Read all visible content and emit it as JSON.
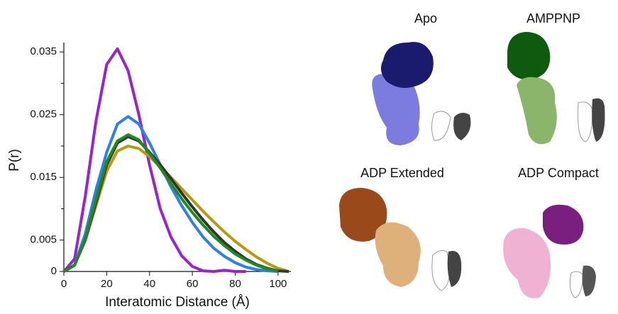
{
  "chart_data": {
    "type": "line",
    "xlabel": "Interatomic Distance (Å)",
    "ylabel": "P(r)",
    "x": [
      0,
      5,
      10,
      15,
      20,
      25,
      30,
      35,
      40,
      45,
      50,
      55,
      60,
      65,
      70,
      75,
      80,
      85,
      90,
      95,
      100,
      105
    ],
    "series": [
      {
        "color": "#f0a0e0",
        "values": [
          0,
          0.002,
          0.012,
          0.024,
          0.033,
          0.0355,
          0.032,
          0.025,
          0.017,
          0.01,
          0.0055,
          0.0025,
          0.0008,
          0.0001,
          0,
          0.0002,
          0,
          0,
          null,
          null,
          null,
          null
        ]
      },
      {
        "color": "#2f7fe8",
        "values": [
          0,
          0.001,
          0.006,
          0.013,
          0.019,
          0.0235,
          0.0247,
          0.0235,
          0.0205,
          0.017,
          0.0135,
          0.0105,
          0.0078,
          0.0055,
          0.0037,
          0.0024,
          0.0014,
          0.0007,
          0.0003,
          0.0001,
          0,
          null
        ]
      },
      {
        "color": "#b89a10",
        "values": [
          0,
          0.001,
          0.005,
          0.0105,
          0.016,
          0.0192,
          0.02,
          0.0196,
          0.0183,
          0.0167,
          0.015,
          0.0132,
          0.0114,
          0.0096,
          0.0079,
          0.0063,
          0.0048,
          0.0035,
          0.0023,
          0.0013,
          0.0005,
          0
        ]
      },
      {
        "color": "#333333",
        "values": [
          0,
          0.001,
          0.005,
          0.011,
          0.017,
          0.0205,
          0.0215,
          0.0208,
          0.019,
          0.017,
          0.0148,
          0.0125,
          0.0103,
          0.0082,
          0.0063,
          0.0046,
          0.0032,
          0.002,
          0.0011,
          0.0005,
          0.0001,
          0
        ]
      },
      {
        "color": "#1f8a1f",
        "values": [
          0,
          0.001,
          0.0052,
          0.0115,
          0.0175,
          0.0208,
          0.0218,
          0.021,
          0.0188,
          0.0165,
          0.014,
          0.0116,
          0.0094,
          0.0074,
          0.0056,
          0.0041,
          0.0028,
          0.0018,
          0.001,
          0.0004,
          0.0001,
          null
        ]
      }
    ],
    "xlim": [
      0,
      106
    ],
    "ylim": [
      0,
      0.0365
    ],
    "xticks": [
      0,
      20,
      40,
      60,
      80,
      100
    ],
    "yticks": [
      0,
      0.005,
      0.015,
      0.025,
      0.035
    ],
    "yminorticks": [
      0.01,
      0.02,
      0.03
    ]
  },
  "structures": {
    "labels": [
      "Apo",
      "AMPPNP",
      "ADP Extended",
      "ADP Compact"
    ]
  }
}
